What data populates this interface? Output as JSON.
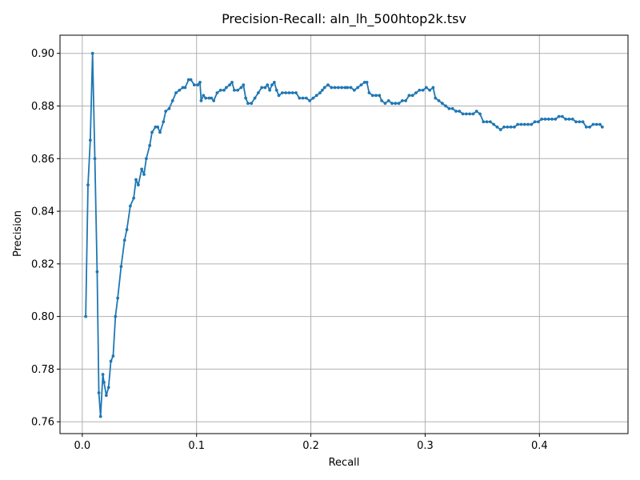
{
  "chart_data": {
    "type": "line",
    "title": "Precision-Recall: aln_lh_500htop2k.tsv",
    "xlabel": "Recall",
    "ylabel": "Precision",
    "xlim": [
      -0.0195,
      0.4775
    ],
    "ylim": [
      0.7555,
      0.9069
    ],
    "grid": true,
    "xticks": [
      0.0,
      0.1,
      0.2,
      0.3,
      0.4
    ],
    "xtick_labels": [
      "0.0",
      "0.1",
      "0.2",
      "0.3",
      "0.4"
    ],
    "yticks": [
      0.76,
      0.78,
      0.8,
      0.82,
      0.84,
      0.86,
      0.88,
      0.9
    ],
    "ytick_labels": [
      "0.76",
      "0.78",
      "0.80",
      "0.82",
      "0.84",
      "0.86",
      "0.88",
      "0.90"
    ],
    "series": [
      {
        "color": "#1f77b4",
        "marker": "dot",
        "points": [
          [
            0.003,
            0.8
          ],
          [
            0.005,
            0.85
          ],
          [
            0.007,
            0.867
          ],
          [
            0.009,
            0.9
          ],
          [
            0.011,
            0.86
          ],
          [
            0.013,
            0.817
          ],
          [
            0.0145,
            0.771
          ],
          [
            0.016,
            0.762
          ],
          [
            0.018,
            0.778
          ],
          [
            0.019,
            0.775
          ],
          [
            0.021,
            0.77
          ],
          [
            0.023,
            0.773
          ],
          [
            0.025,
            0.783
          ],
          [
            0.027,
            0.785
          ],
          [
            0.029,
            0.8
          ],
          [
            0.031,
            0.807
          ],
          [
            0.034,
            0.819
          ],
          [
            0.037,
            0.829
          ],
          [
            0.039,
            0.833
          ],
          [
            0.042,
            0.842
          ],
          [
            0.045,
            0.845
          ],
          [
            0.047,
            0.852
          ],
          [
            0.049,
            0.85
          ],
          [
            0.052,
            0.856
          ],
          [
            0.054,
            0.854
          ],
          [
            0.056,
            0.86
          ],
          [
            0.059,
            0.865
          ],
          [
            0.061,
            0.87
          ],
          [
            0.064,
            0.872
          ],
          [
            0.066,
            0.872
          ],
          [
            0.068,
            0.87
          ],
          [
            0.071,
            0.874
          ],
          [
            0.073,
            0.878
          ],
          [
            0.076,
            0.879
          ],
          [
            0.079,
            0.882
          ],
          [
            0.082,
            0.885
          ],
          [
            0.085,
            0.886
          ],
          [
            0.088,
            0.887
          ],
          [
            0.09,
            0.887
          ],
          [
            0.093,
            0.89
          ],
          [
            0.095,
            0.89
          ],
          [
            0.098,
            0.888
          ],
          [
            0.101,
            0.888
          ],
          [
            0.103,
            0.889
          ],
          [
            0.104,
            0.882
          ],
          [
            0.106,
            0.884
          ],
          [
            0.108,
            0.883
          ],
          [
            0.111,
            0.883
          ],
          [
            0.113,
            0.883
          ],
          [
            0.115,
            0.882
          ],
          [
            0.118,
            0.885
          ],
          [
            0.121,
            0.886
          ],
          [
            0.124,
            0.886
          ],
          [
            0.126,
            0.887
          ],
          [
            0.129,
            0.888
          ],
          [
            0.131,
            0.889
          ],
          [
            0.133,
            0.886
          ],
          [
            0.136,
            0.886
          ],
          [
            0.139,
            0.887
          ],
          [
            0.141,
            0.888
          ],
          [
            0.143,
            0.883
          ],
          [
            0.145,
            0.881
          ],
          [
            0.148,
            0.881
          ],
          [
            0.151,
            0.883
          ],
          [
            0.154,
            0.885
          ],
          [
            0.157,
            0.887
          ],
          [
            0.16,
            0.887
          ],
          [
            0.162,
            0.888
          ],
          [
            0.164,
            0.886
          ],
          [
            0.166,
            0.888
          ],
          [
            0.168,
            0.889
          ],
          [
            0.17,
            0.886
          ],
          [
            0.172,
            0.884
          ],
          [
            0.175,
            0.885
          ],
          [
            0.178,
            0.885
          ],
          [
            0.181,
            0.885
          ],
          [
            0.184,
            0.885
          ],
          [
            0.187,
            0.885
          ],
          [
            0.19,
            0.883
          ],
          [
            0.193,
            0.883
          ],
          [
            0.196,
            0.883
          ],
          [
            0.199,
            0.882
          ],
          [
            0.202,
            0.883
          ],
          [
            0.205,
            0.884
          ],
          [
            0.208,
            0.885
          ],
          [
            0.21,
            0.886
          ],
          [
            0.212,
            0.887
          ],
          [
            0.215,
            0.888
          ],
          [
            0.218,
            0.887
          ],
          [
            0.221,
            0.887
          ],
          [
            0.224,
            0.887
          ],
          [
            0.227,
            0.887
          ],
          [
            0.23,
            0.887
          ],
          [
            0.232,
            0.887
          ],
          [
            0.235,
            0.887
          ],
          [
            0.238,
            0.886
          ],
          [
            0.241,
            0.887
          ],
          [
            0.244,
            0.888
          ],
          [
            0.247,
            0.889
          ],
          [
            0.249,
            0.889
          ],
          [
            0.251,
            0.885
          ],
          [
            0.254,
            0.884
          ],
          [
            0.257,
            0.884
          ],
          [
            0.26,
            0.884
          ],
          [
            0.262,
            0.882
          ],
          [
            0.265,
            0.881
          ],
          [
            0.268,
            0.882
          ],
          [
            0.271,
            0.881
          ],
          [
            0.274,
            0.881
          ],
          [
            0.277,
            0.881
          ],
          [
            0.28,
            0.882
          ],
          [
            0.283,
            0.882
          ],
          [
            0.286,
            0.884
          ],
          [
            0.289,
            0.884
          ],
          [
            0.292,
            0.885
          ],
          [
            0.295,
            0.886
          ],
          [
            0.298,
            0.886
          ],
          [
            0.301,
            0.887
          ],
          [
            0.304,
            0.886
          ],
          [
            0.307,
            0.887
          ],
          [
            0.309,
            0.883
          ],
          [
            0.312,
            0.882
          ],
          [
            0.315,
            0.881
          ],
          [
            0.318,
            0.88
          ],
          [
            0.321,
            0.879
          ],
          [
            0.324,
            0.879
          ],
          [
            0.327,
            0.878
          ],
          [
            0.33,
            0.878
          ],
          [
            0.333,
            0.877
          ],
          [
            0.336,
            0.877
          ],
          [
            0.339,
            0.877
          ],
          [
            0.342,
            0.877
          ],
          [
            0.345,
            0.878
          ],
          [
            0.348,
            0.877
          ],
          [
            0.351,
            0.874
          ],
          [
            0.354,
            0.874
          ],
          [
            0.357,
            0.874
          ],
          [
            0.36,
            0.873
          ],
          [
            0.363,
            0.872
          ],
          [
            0.366,
            0.871
          ],
          [
            0.369,
            0.872
          ],
          [
            0.372,
            0.872
          ],
          [
            0.375,
            0.872
          ],
          [
            0.378,
            0.872
          ],
          [
            0.381,
            0.873
          ],
          [
            0.384,
            0.873
          ],
          [
            0.387,
            0.873
          ],
          [
            0.39,
            0.873
          ],
          [
            0.393,
            0.873
          ],
          [
            0.396,
            0.874
          ],
          [
            0.399,
            0.874
          ],
          [
            0.402,
            0.875
          ],
          [
            0.405,
            0.875
          ],
          [
            0.408,
            0.875
          ],
          [
            0.411,
            0.875
          ],
          [
            0.414,
            0.875
          ],
          [
            0.417,
            0.876
          ],
          [
            0.42,
            0.876
          ],
          [
            0.423,
            0.875
          ],
          [
            0.426,
            0.875
          ],
          [
            0.429,
            0.875
          ],
          [
            0.432,
            0.874
          ],
          [
            0.435,
            0.874
          ],
          [
            0.438,
            0.874
          ],
          [
            0.441,
            0.872
          ],
          [
            0.444,
            0.872
          ],
          [
            0.447,
            0.873
          ],
          [
            0.45,
            0.873
          ],
          [
            0.453,
            0.873
          ],
          [
            0.455,
            0.872
          ]
        ]
      }
    ]
  }
}
